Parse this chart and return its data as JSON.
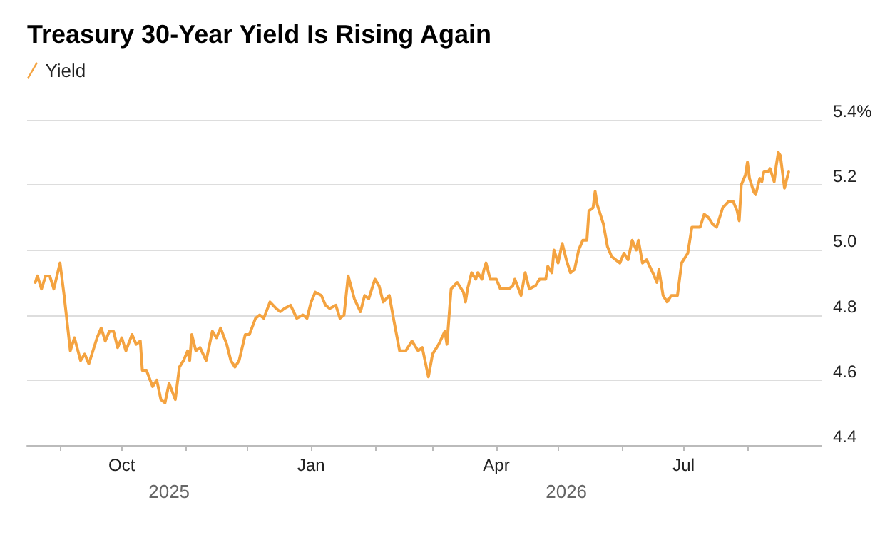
{
  "chart_data": {
    "type": "line",
    "title": "Treasury 30-Year Yield Is Rising Again",
    "legend": "top left",
    "grid": "y",
    "marker": "none",
    "line_style": "solid",
    "xlim": [
      "2025-08-16",
      "2026-09-06"
    ],
    "xticks": [
      {
        "value": "2025-09-01",
        "label": null
      },
      {
        "value": "2025-10-01",
        "label": "Oct"
      },
      {
        "value": "2025-11-01",
        "label": null
      },
      {
        "value": "2025-12-01",
        "label": null
      },
      {
        "value": "2026-01-01",
        "label": "Jan"
      },
      {
        "value": "2026-02-01",
        "label": null
      },
      {
        "value": "2026-03-01",
        "label": null
      },
      {
        "value": "2026-04-01",
        "label": "Apr"
      },
      {
        "value": "2026-05-01",
        "label": null
      },
      {
        "value": "2026-06-01",
        "label": null
      },
      {
        "value": "2026-07-01",
        "label": "Jul"
      },
      {
        "value": "2026-08-01",
        "label": null
      }
    ],
    "ylim": [
      4.4,
      5.4
    ],
    "yticks": [
      4.4,
      4.6,
      4.8,
      {
        "value": 5.0,
        "label": "5.0"
      },
      5.2,
      {
        "value": 5.4,
        "label": "5.4%"
      }
    ],
    "annotations": [
      "2025",
      "2026"
    ],
    "series": [
      {
        "name": "Yield",
        "color": "#f4a340",
        "x": [
          "2025-08-20",
          "2025-08-21",
          "2025-08-23",
          "2025-08-25",
          "2025-08-27",
          "2025-08-29",
          "2025-09-01",
          "2025-09-03",
          "2025-09-06",
          "2025-09-08",
          "2025-09-11",
          "2025-09-13",
          "2025-09-15",
          "2025-09-19",
          "2025-09-21",
          "2025-09-23",
          "2025-09-25",
          "2025-09-27",
          "2025-09-29",
          "2025-10-01",
          "2025-10-03",
          "2025-10-06",
          "2025-10-08",
          "2025-10-10",
          "2025-10-11",
          "2025-10-13",
          "2025-10-16",
          "2025-10-18",
          "2025-10-20",
          "2025-10-22",
          "2025-10-24",
          "2025-10-27",
          "2025-10-29",
          "2025-10-31",
          "2025-11-02",
          "2025-11-03",
          "2025-11-04",
          "2025-11-06",
          "2025-11-08",
          "2025-11-11",
          "2025-11-14",
          "2025-11-16",
          "2025-11-18",
          "2025-11-21",
          "2025-11-23",
          "2025-11-25",
          "2025-11-27",
          "2025-11-30",
          "2025-12-02",
          "2025-12-05",
          "2025-12-07",
          "2025-12-09",
          "2025-12-12",
          "2025-12-15",
          "2025-12-17",
          "2025-12-19",
          "2025-12-22",
          "2025-12-25",
          "2025-12-28",
          "2025-12-30",
          "2026-01-01",
          "2026-01-03",
          "2026-01-06",
          "2026-01-08",
          "2026-01-10",
          "2026-01-13",
          "2026-01-15",
          "2026-01-17",
          "2026-01-19",
          "2026-01-22",
          "2026-01-25",
          "2026-01-27",
          "2026-01-29",
          "2026-02-01",
          "2026-02-03",
          "2026-02-05",
          "2026-02-08",
          "2026-02-10",
          "2026-02-13",
          "2026-02-16",
          "2026-02-19",
          "2026-02-22",
          "2026-02-24",
          "2026-02-27",
          "2026-03-01",
          "2026-03-04",
          "2026-03-07",
          "2026-03-08",
          "2026-03-10",
          "2026-03-13",
          "2026-03-16",
          "2026-03-17",
          "2026-03-18",
          "2026-03-20",
          "2026-03-22",
          "2026-03-23",
          "2026-03-25",
          "2026-03-26",
          "2026-03-27",
          "2026-03-29",
          "2026-04-01",
          "2026-04-03",
          "2026-04-04",
          "2026-04-07",
          "2026-04-09",
          "2026-04-10",
          "2026-04-13",
          "2026-04-15",
          "2026-04-17",
          "2026-04-20",
          "2026-04-22",
          "2026-04-25",
          "2026-04-26",
          "2026-04-28",
          "2026-04-29",
          "2026-05-01",
          "2026-05-03",
          "2026-05-05",
          "2026-05-07",
          "2026-05-09",
          "2026-05-11",
          "2026-05-13",
          "2026-05-15",
          "2026-05-16",
          "2026-05-18",
          "2026-05-19",
          "2026-05-20",
          "2026-05-23",
          "2026-05-25",
          "2026-05-27",
          "2026-05-29",
          "2026-05-31",
          "2026-06-02",
          "2026-06-04",
          "2026-06-06",
          "2026-06-08",
          "2026-06-09",
          "2026-06-11",
          "2026-06-13",
          "2026-06-16",
          "2026-06-18",
          "2026-06-19",
          "2026-06-21",
          "2026-06-23",
          "2026-06-25",
          "2026-06-28",
          "2026-06-30",
          "2026-07-02",
          "2026-07-03",
          "2026-07-05",
          "2026-07-07",
          "2026-07-09",
          "2026-07-11",
          "2026-07-13",
          "2026-07-15",
          "2026-07-17",
          "2026-07-19",
          "2026-07-20",
          "2026-07-23",
          "2026-07-25",
          "2026-07-27",
          "2026-07-28",
          "2026-07-29",
          "2026-07-31",
          "2026-08-01",
          "2026-08-02",
          "2026-08-04",
          "2026-08-05",
          "2026-08-07",
          "2026-08-08",
          "2026-08-09",
          "2026-08-11",
          "2026-08-12",
          "2026-08-14",
          "2026-08-15",
          "2026-08-16",
          "2026-08-17",
          "2026-08-19",
          "2026-08-21"
        ],
        "values": [
          4.9,
          4.92,
          4.88,
          4.92,
          4.92,
          4.88,
          4.96,
          4.86,
          4.69,
          4.73,
          4.66,
          4.68,
          4.65,
          4.73,
          4.76,
          4.72,
          4.75,
          4.75,
          4.7,
          4.73,
          4.69,
          4.74,
          4.71,
          4.72,
          4.63,
          4.63,
          4.58,
          4.6,
          4.54,
          4.53,
          4.59,
          4.54,
          4.64,
          4.66,
          4.69,
          4.66,
          4.74,
          4.69,
          4.7,
          4.66,
          4.75,
          4.73,
          4.76,
          4.71,
          4.66,
          4.64,
          4.66,
          4.74,
          4.74,
          4.79,
          4.8,
          4.79,
          4.84,
          4.82,
          4.81,
          4.82,
          4.83,
          4.79,
          4.8,
          4.79,
          4.84,
          4.87,
          4.86,
          4.83,
          4.82,
          4.83,
          4.79,
          4.8,
          4.92,
          4.85,
          4.81,
          4.86,
          4.85,
          4.91,
          4.89,
          4.84,
          4.86,
          4.79,
          4.69,
          4.69,
          4.72,
          4.69,
          4.7,
          4.61,
          4.68,
          4.71,
          4.75,
          4.71,
          4.88,
          4.9,
          4.87,
          4.84,
          4.88,
          4.93,
          4.91,
          4.93,
          4.91,
          4.94,
          4.96,
          4.91,
          4.91,
          4.88,
          4.88,
          4.88,
          4.89,
          4.91,
          4.86,
          4.93,
          4.88,
          4.89,
          4.91,
          4.91,
          4.95,
          4.93,
          5.0,
          4.96,
          5.02,
          4.97,
          4.93,
          4.94,
          5.0,
          5.03,
          5.03,
          5.12,
          5.13,
          5.18,
          5.14,
          5.08,
          5.01,
          4.98,
          4.97,
          4.96,
          4.99,
          4.97,
          5.03,
          5.0,
          5.03,
          4.96,
          4.97,
          4.93,
          4.9,
          4.94,
          4.86,
          4.84,
          4.86,
          4.86,
          4.96,
          4.98,
          4.99,
          5.07,
          5.07,
          5.07,
          5.11,
          5.1,
          5.08,
          5.07,
          5.11,
          5.13,
          5.15,
          5.15,
          5.12,
          5.09,
          5.2,
          5.23,
          5.27,
          5.22,
          5.18,
          5.17,
          5.22,
          5.21,
          5.24,
          5.24,
          5.25,
          5.21,
          5.26,
          5.3,
          5.29,
          5.19,
          5.24
        ]
      }
    ]
  }
}
